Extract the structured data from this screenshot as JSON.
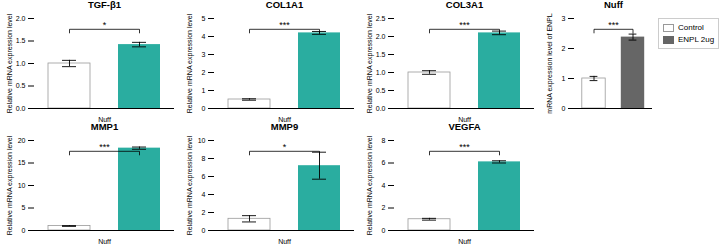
{
  "chart_data": [
    {
      "type": "bar",
      "title": "TGF-β1",
      "categories": [
        "Nuff"
      ],
      "ylabel": "Relative mRNA expression level",
      "series": [
        {
          "color": "#ffffff",
          "values": [
            1.0
          ],
          "errors": [
            0.07
          ]
        },
        {
          "color": "#2aada0",
          "values": [
            1.42
          ],
          "errors": [
            0.05
          ]
        }
      ],
      "ylim": [
        0,
        2.0
      ],
      "yticks": [
        {
          "value": 0,
          "label": "0.0"
        },
        0.5,
        {
          "value": 1,
          "label": "1.0"
        },
        1.5,
        {
          "value": 2,
          "label": "2.0"
        }
      ],
      "annotations": [
        "*"
      ]
    },
    {
      "type": "bar",
      "title": "COL1A1",
      "categories": [
        "Nuff"
      ],
      "ylabel": "Relative mRNA expression level",
      "series": [
        {
          "color": "#ffffff",
          "values": [
            0.5
          ],
          "errors": [
            0.04
          ]
        },
        {
          "color": "#2aada0",
          "values": [
            4.2
          ],
          "errors": [
            0.08
          ]
        }
      ],
      "ylim": [
        0,
        5
      ],
      "yticks": [
        0,
        1,
        2,
        3,
        4,
        5
      ],
      "annotations": [
        "***"
      ]
    },
    {
      "type": "bar",
      "title": "COL3A1",
      "categories": [
        "Nuff"
      ],
      "ylabel": "Relative mRNA expression level",
      "series": [
        {
          "color": "#ffffff",
          "values": [
            1.0
          ],
          "errors": [
            0.05
          ]
        },
        {
          "color": "#2aada0",
          "values": [
            2.1
          ],
          "errors": [
            0.05
          ]
        }
      ],
      "ylim": [
        0,
        2.5
      ],
      "yticks": [
        {
          "value": 0,
          "label": "0.0"
        },
        0.5,
        {
          "value": 1,
          "label": "1.0"
        },
        1.5,
        {
          "value": 2,
          "label": "2.0"
        },
        2.5
      ],
      "annotations": [
        "***"
      ]
    },
    {
      "type": "bar",
      "title": "Nuff",
      "categories": [
        null
      ],
      "ylabel": "mRNA expression level of ENPL",
      "series": [
        {
          "name": "Control",
          "color": "#ffffff",
          "values": [
            1.0
          ],
          "errors": [
            0.07
          ]
        },
        {
          "name": "ENPL 2ug",
          "color": "#666666",
          "values": [
            2.38
          ],
          "errors": [
            0.1
          ]
        }
      ],
      "ylim": [
        0,
        3
      ],
      "yticks": [
        0,
        1,
        2,
        3
      ],
      "annotations": [
        "***"
      ],
      "legend": "upper right"
    },
    {
      "type": "bar",
      "title": "MMP1",
      "categories": [
        "Nuff"
      ],
      "ylabel": "Relative mRNA expression level",
      "series": [
        {
          "color": "#ffffff",
          "values": [
            1.0
          ],
          "errors": [
            0.08
          ]
        },
        {
          "color": "#2aada0",
          "values": [
            18.3
          ],
          "errors": [
            0.25
          ]
        }
      ],
      "ylim": [
        0,
        20
      ],
      "yticks": [
        0,
        5,
        10,
        15,
        20
      ],
      "annotations": [
        "***"
      ]
    },
    {
      "type": "bar",
      "title": "MMP9",
      "categories": [
        "Nuff"
      ],
      "ylabel": "Relative mRNA expression level",
      "series": [
        {
          "color": "#ffffff",
          "values": [
            1.3
          ],
          "errors": [
            0.35
          ]
        },
        {
          "color": "#2aada0",
          "values": [
            7.2
          ],
          "errors": [
            1.5
          ]
        }
      ],
      "ylim": [
        0,
        10
      ],
      "yticks": [
        0,
        2,
        4,
        6,
        8,
        10
      ],
      "annotations": [
        "*"
      ]
    },
    {
      "type": "bar",
      "title": "VEGFA",
      "categories": [
        "Nuff"
      ],
      "ylabel": "Relative mRNA expression level",
      "series": [
        {
          "color": "#ffffff",
          "values": [
            1.0
          ],
          "errors": [
            0.08
          ]
        },
        {
          "color": "#2aada0",
          "values": [
            6.1
          ],
          "errors": [
            0.1
          ]
        }
      ],
      "ylim": [
        0,
        8
      ],
      "yticks": [
        0,
        2,
        4,
        6,
        8
      ],
      "annotations": [
        "***"
      ]
    }
  ]
}
